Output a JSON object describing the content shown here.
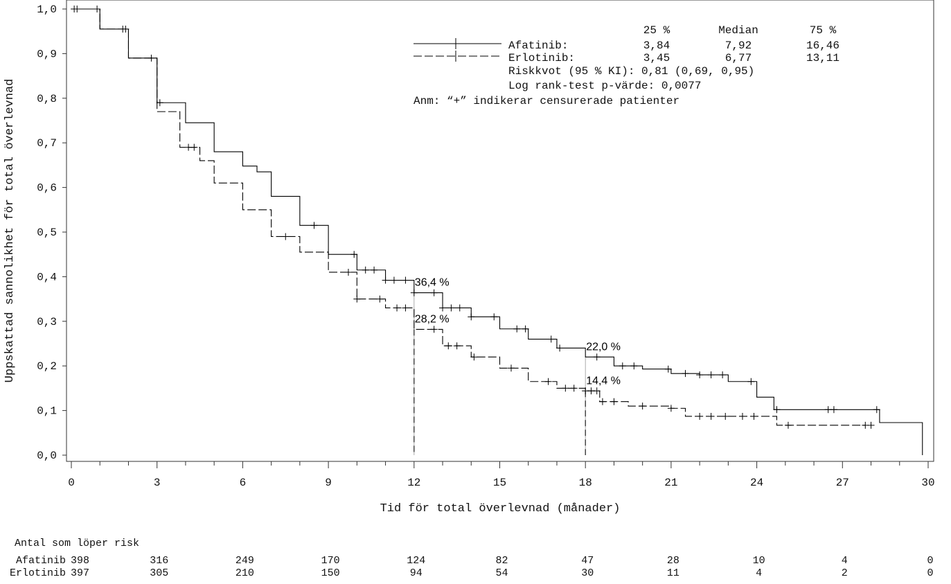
{
  "chart_data": {
    "type": "line",
    "subtype": "kaplan-meier",
    "xlabel": "Tid för total överlevnad (månader)",
    "ylabel": "Uppskattad sannolikhet för total överlevnad",
    "xlim": [
      0,
      30
    ],
    "ylim": [
      0,
      1
    ],
    "x_ticks": [
      0,
      3,
      6,
      9,
      12,
      15,
      18,
      21,
      24,
      27,
      30
    ],
    "x_tick_labels": [
      "0",
      "3",
      "6",
      "9",
      "12",
      "15",
      "18",
      "21",
      "24",
      "27",
      "30"
    ],
    "y_ticks": [
      0,
      0.1,
      0.2,
      0.3,
      0.4,
      0.5,
      0.6,
      0.7,
      0.8,
      0.9,
      1.0
    ],
    "y_tick_labels": [
      "0,0",
      "0,1",
      "0,2",
      "0,3",
      "0,4",
      "0,5",
      "0,6",
      "0,7",
      "0,8",
      "0,9",
      "1,0"
    ],
    "grid": false,
    "legend": {
      "placement": "top-right",
      "header": [
        "25 %",
        "Median",
        "75 %"
      ],
      "rows": [
        {
          "name": "Afatinib:",
          "style": "solid",
          "values": [
            "3,84",
            "7,92",
            "16,46"
          ]
        },
        {
          "name": "Erlotinib:",
          "style": "dashed",
          "values": [
            "3,45",
            "6,77",
            "13,11"
          ]
        }
      ],
      "notes": [
        "Riskkvot (95 % KI): 0,81 (0,69, 0,95)",
        "Log rank-test p-värde: 0,0077",
        "Anm: “+” indikerar censurerade patienter"
      ]
    },
    "series": [
      {
        "name": "Afatinib",
        "style": "solid",
        "color": "#000000",
        "points": [
          [
            0,
            1.0
          ],
          [
            1,
            0.955
          ],
          [
            2,
            0.89
          ],
          [
            3,
            0.79
          ],
          [
            4,
            0.745
          ],
          [
            5,
            0.68
          ],
          [
            6,
            0.648
          ],
          [
            6.5,
            0.635
          ],
          [
            7,
            0.58
          ],
          [
            8,
            0.515
          ],
          [
            9,
            0.45
          ],
          [
            10,
            0.415
          ],
          [
            11,
            0.392
          ],
          [
            12,
            0.364
          ],
          [
            13,
            0.33
          ],
          [
            14,
            0.31
          ],
          [
            15,
            0.283
          ],
          [
            16,
            0.26
          ],
          [
            17,
            0.24
          ],
          [
            18,
            0.22
          ],
          [
            19,
            0.2
          ],
          [
            20,
            0.193
          ],
          [
            21,
            0.183
          ],
          [
            22,
            0.18
          ],
          [
            23,
            0.165
          ],
          [
            24,
            0.13
          ],
          [
            24.6,
            0.102
          ],
          [
            28.2,
            0.102
          ],
          [
            28.3,
            0.073
          ],
          [
            29.8,
            0.073
          ],
          [
            29.8,
            0.0
          ]
        ],
        "censored_x": [
          0.1,
          0.9,
          1.9,
          3.1,
          8.5,
          9.9,
          10.3,
          10.6,
          11.0,
          11.3,
          11.7,
          12.0,
          12.7,
          13.0,
          13.3,
          13.6,
          14.0,
          14.8,
          15.6,
          15.9,
          16.8,
          17.1,
          18.4,
          19.3,
          19.7,
          20.9,
          21.5,
          22.0,
          22.4,
          22.8,
          23.8,
          24.7,
          26.5,
          26.7,
          28.2
        ]
      },
      {
        "name": "Erlotinib",
        "style": "dashed",
        "color": "#000000",
        "points": [
          [
            0,
            1.0
          ],
          [
            1,
            0.955
          ],
          [
            2,
            0.89
          ],
          [
            3,
            0.77
          ],
          [
            3.8,
            0.69
          ],
          [
            4.5,
            0.66
          ],
          [
            5,
            0.61
          ],
          [
            6,
            0.55
          ],
          [
            7,
            0.49
          ],
          [
            8,
            0.455
          ],
          [
            9,
            0.41
          ],
          [
            10,
            0.35
          ],
          [
            11,
            0.33
          ],
          [
            12,
            0.282
          ],
          [
            13,
            0.245
          ],
          [
            14,
            0.22
          ],
          [
            15,
            0.195
          ],
          [
            16,
            0.165
          ],
          [
            17,
            0.15
          ],
          [
            18,
            0.144
          ],
          [
            18.5,
            0.12
          ],
          [
            19.5,
            0.11
          ],
          [
            21,
            0.105
          ],
          [
            21.5,
            0.087
          ],
          [
            22,
            0.087
          ],
          [
            24.6,
            0.087
          ],
          [
            24.7,
            0.067
          ],
          [
            25.1,
            0.067
          ],
          [
            27.8,
            0.067
          ]
        ],
        "censored_x": [
          0.2,
          1.8,
          2.8,
          4.1,
          4.3,
          7.5,
          9.7,
          10.0,
          10.8,
          11.4,
          11.7,
          12.7,
          13.2,
          13.5,
          14.1,
          15.4,
          16.7,
          17.3,
          17.6,
          18.0,
          18.2,
          18.4,
          18.6,
          19.0,
          20.0,
          21.0,
          22.0,
          22.4,
          22.9,
          23.5,
          23.9,
          25.1,
          27.8,
          28.0
        ]
      }
    ],
    "annotations": [
      {
        "text": "36,4 %",
        "x": 12,
        "y": 0.364
      },
      {
        "text": "28,2 %",
        "x": 12,
        "y": 0.282
      },
      {
        "text": "22,0 %",
        "x": 18,
        "y": 0.22
      },
      {
        "text": "14,4 %",
        "x": 18,
        "y": 0.144
      }
    ],
    "reference_lines_x": [
      12,
      18
    ],
    "risk_table": {
      "title": "Antal som löper risk",
      "times": [
        0,
        3,
        6,
        9,
        12,
        15,
        18,
        21,
        24,
        27,
        30
      ],
      "rows": [
        {
          "label": "Afatinib",
          "values": [
            "398",
            "316",
            "249",
            "170",
            "124",
            "82",
            "47",
            "28",
            "10",
            "4",
            "0"
          ]
        },
        {
          "label": "Erlotinib",
          "values": [
            "397",
            "305",
            "210",
            "150",
            "94",
            "54",
            "30",
            "11",
            "4",
            "2",
            "0"
          ]
        }
      ]
    }
  }
}
